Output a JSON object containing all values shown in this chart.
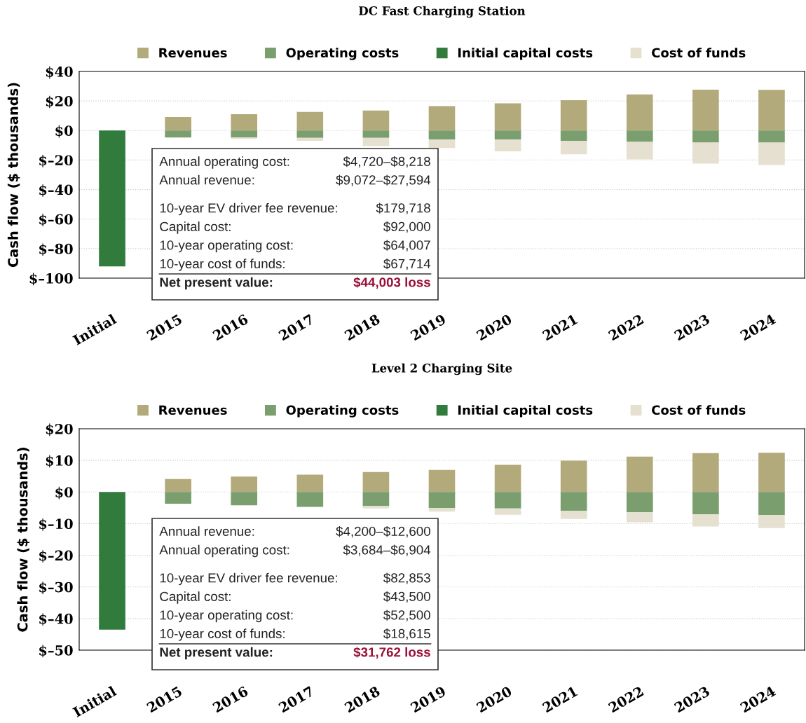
{
  "chart_data": [
    {
      "type": "bar",
      "title": "DC Fast Charging Station",
      "ylabel": "Cash flow ($ thousands)",
      "stacked": true,
      "legend": "top",
      "grid": "y",
      "categories": [
        "Initial",
        "2015",
        "2016",
        "2017",
        "2018",
        "2019",
        "2020",
        "2021",
        "2022",
        "2023",
        "2024"
      ],
      "series": [
        {
          "name": "Revenues",
          "color": "#b3aa7b",
          "values": [
            null,
            9.1,
            11.0,
            12.6,
            13.5,
            16.5,
            18.4,
            20.6,
            24.5,
            27.7,
            27.6
          ]
        },
        {
          "name": "Operating costs",
          "color": "#7a9e6e",
          "values": [
            null,
            -4.7,
            -4.7,
            -5.0,
            -5.0,
            -6.1,
            -6.1,
            -7.1,
            -7.7,
            -8.2,
            -8.2
          ]
        },
        {
          "name": "Initial capital costs",
          "color": "#317b3d",
          "values": [
            -92,
            null,
            null,
            null,
            null,
            null,
            null,
            null,
            null,
            null,
            null
          ]
        },
        {
          "name": "Cost of funds",
          "color": "#e5e0d0",
          "values": [
            null,
            0,
            -1.0,
            -2.0,
            -5.5,
            -5.8,
            -8.0,
            -9.0,
            -11.9,
            -14.2,
            -15.2
          ]
        }
      ],
      "ylim": [
        -100,
        40
      ],
      "yticks": [
        {
          "value": 40,
          "label": "$40"
        },
        {
          "value": 20,
          "label": "$20"
        },
        {
          "value": 0,
          "label": "$0"
        },
        {
          "value": -20,
          "label": "$–20"
        },
        {
          "value": -40,
          "label": "$–40"
        },
        {
          "value": -60,
          "label": "$–60"
        },
        {
          "value": -80,
          "label": "$–80"
        },
        {
          "value": -100,
          "label": "$–100"
        }
      ],
      "annotations": [
        "Annual operating cost:",
        "$4,720–$8,218",
        "Annual revenue:",
        "$9,072–$27,594",
        "10-year EV driver fee revenue:",
        "$179,718",
        "Capital cost:",
        "$92,000",
        "10-year operating cost:",
        "$64,007",
        "10-year cost of funds:",
        "$67,714",
        "Net present value:",
        "$44,003 loss"
      ]
    },
    {
      "type": "bar",
      "title": "Level 2 Charging Site",
      "ylabel": "Cash flow ($ thousands)",
      "stacked": true,
      "legend": "top",
      "grid": "y",
      "categories": [
        "Initial",
        "2015",
        "2016",
        "2017",
        "2018",
        "2019",
        "2020",
        "2021",
        "2022",
        "2023",
        "2024"
      ],
      "series": [
        {
          "name": "Revenues",
          "color": "#b3aa7b",
          "values": [
            null,
            4.1,
            4.9,
            5.5,
            6.3,
            7.0,
            8.6,
            9.9,
            11.2,
            12.3,
            12.4
          ]
        },
        {
          "name": "Operating costs",
          "color": "#7a9e6e",
          "values": [
            null,
            -3.7,
            -4.2,
            -4.7,
            -4.4,
            -5.1,
            -5.2,
            -6.0,
            -6.4,
            -7.1,
            -7.3
          ]
        },
        {
          "name": "Initial capital costs",
          "color": "#317b3d",
          "values": [
            -43.5,
            null,
            null,
            null,
            null,
            null,
            null,
            null,
            null,
            null,
            null
          ]
        },
        {
          "name": "Cost of funds",
          "color": "#e5e0d0",
          "values": [
            null,
            0,
            0,
            0,
            -0.8,
            -1.1,
            -2.0,
            -2.5,
            -3.2,
            -3.8,
            -4.1
          ]
        }
      ],
      "ylim": [
        -50,
        20
      ],
      "yticks": [
        {
          "value": 20,
          "label": "$20"
        },
        {
          "value": 10,
          "label": "$10"
        },
        {
          "value": 0,
          "label": "$0"
        },
        {
          "value": -10,
          "label": "$–10"
        },
        {
          "value": -20,
          "label": "$–20"
        },
        {
          "value": -30,
          "label": "$–30"
        },
        {
          "value": -40,
          "label": "$–40"
        },
        {
          "value": -50,
          "label": "$–50"
        }
      ],
      "annotations": [
        "Annual revenue:",
        "$4,200–$12,600",
        "Annual operating cost:",
        "$3,684–$6,904",
        "10-year EV driver fee revenue:",
        "$82,853",
        "Capital cost:",
        "$43,500",
        "10-year operating cost:",
        "$52,500",
        "10-year cost of funds:",
        "$18,615",
        "Net present value:",
        "$31,762 loss"
      ]
    }
  ]
}
